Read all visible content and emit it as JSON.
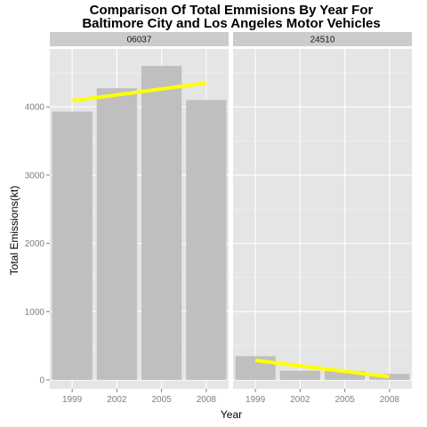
{
  "chart_data": {
    "type": "bar",
    "title_lines": [
      "Comparison Of Total Emmisions By Year For",
      "Baltimore City and Los Angeles Motor Vehicles"
    ],
    "xlabel": "Year",
    "ylabel": "Total Emissions(kt)",
    "categories": [
      "1999",
      "2002",
      "2005",
      "2008"
    ],
    "yticks": [
      0,
      1000,
      2000,
      3000,
      4000
    ],
    "ylim": [
      -130,
      4850
    ],
    "grid": true,
    "panels": [
      {
        "name": "06037",
        "values": [
          3931,
          4274,
          4601,
          4101
        ],
        "trend": {
          "start": 4090,
          "end": 4350
        }
      },
      {
        "name": "24510",
        "values": [
          347,
          134,
          130,
          88
        ],
        "trend": {
          "start": 285,
          "end": 45
        }
      }
    ],
    "colors": {
      "bar": "#bfbfbf",
      "panel_bg": "#e5e5e5",
      "strip_bg": "#cccccc",
      "grid_major": "#ffffff",
      "grid_minor": "#f2f2f2",
      "trend": "#ffff00"
    }
  }
}
